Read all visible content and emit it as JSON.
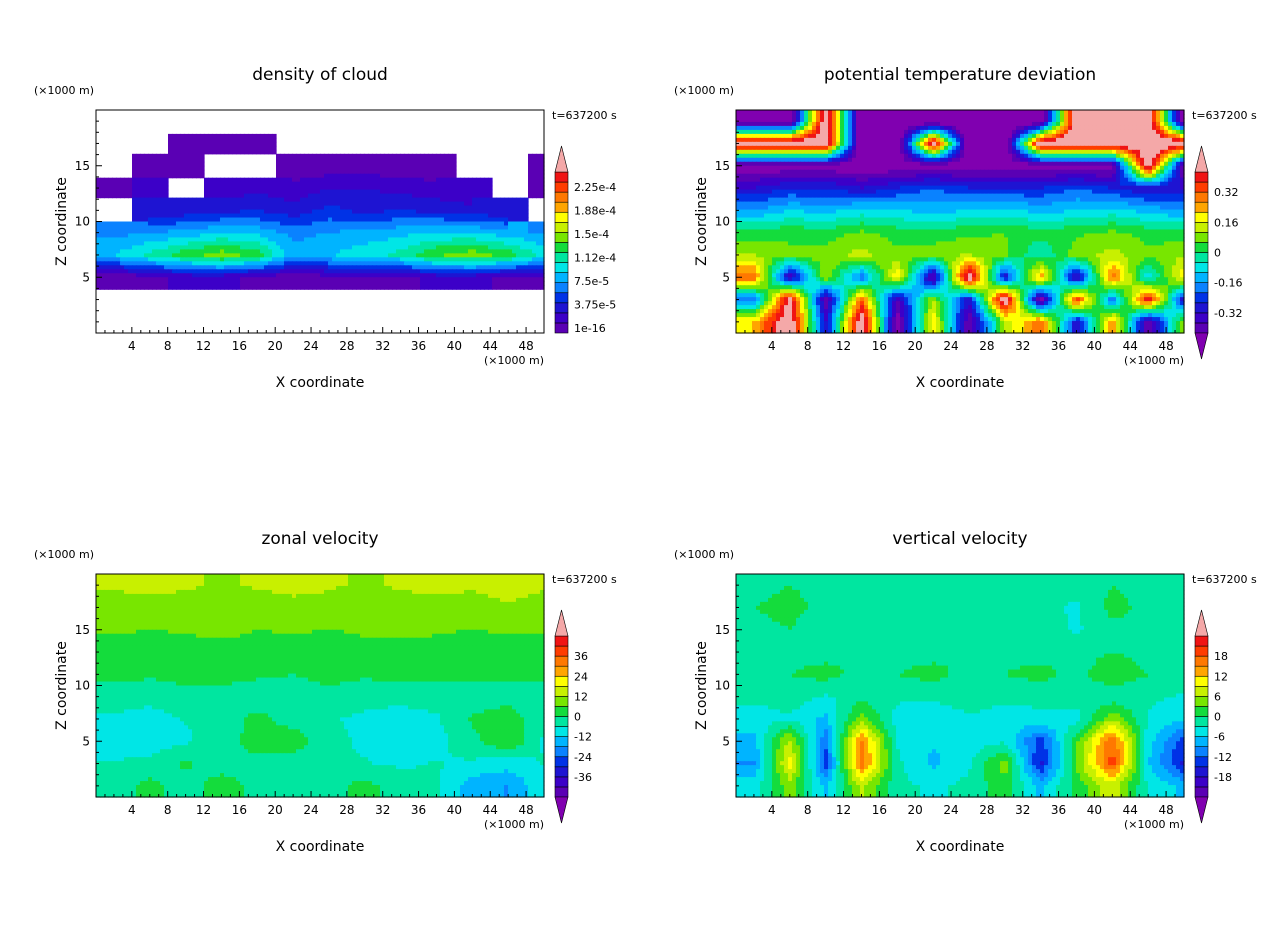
{
  "chart_data": [
    {
      "type": "heatmap",
      "title": "density of cloud",
      "xlabel": "X coordinate",
      "ylabel": "Z coordinate",
      "xunit": "(×1000 m)",
      "yunit": "(×1000 m)",
      "time": "t=637200 s",
      "xlim": [
        0,
        50
      ],
      "ylim": [
        0,
        20
      ],
      "xticks": [
        4,
        8,
        12,
        16,
        20,
        24,
        28,
        32,
        36,
        40,
        44,
        48
      ],
      "yticks": [
        5,
        10,
        15
      ],
      "colorbar": {
        "labels": [
          "1e-16",
          "3.75e-5",
          "7.5e-5",
          "1.12e-4",
          "1.5e-4",
          "1.88e-4",
          "2.25e-4"
        ],
        "min": 0,
        "max": 0.00024,
        "under": false,
        "over": true
      },
      "grid_x": [
        2,
        6,
        10,
        14,
        18,
        22,
        26,
        30,
        34,
        38,
        42,
        46,
        50
      ],
      "grid_z": [
        19,
        17,
        15,
        13,
        11,
        9,
        7,
        5,
        3,
        1
      ],
      "values": [
        [
          null,
          null,
          null,
          null,
          null,
          null,
          null,
          null,
          null,
          null,
          null,
          null,
          null
        ],
        [
          null,
          null,
          1e-06,
          2e-06,
          1e-06,
          null,
          null,
          null,
          null,
          null,
          null,
          null,
          null
        ],
        [
          null,
          2e-06,
          4e-06,
          null,
          null,
          3e-06,
          4e-06,
          5e-06,
          4e-06,
          3e-06,
          null,
          null,
          2e-06
        ],
        [
          1e-05,
          1.5e-05,
          null,
          2e-05,
          2.5e-05,
          2e-05,
          3e-05,
          3e-05,
          2.5e-05,
          2e-05,
          1.5e-05,
          null,
          1e-05
        ],
        [
          null,
          3e-05,
          3.5e-05,
          4e-05,
          4.5e-05,
          3.5e-05,
          5e-05,
          4e-05,
          4.5e-05,
          4e-05,
          3.5e-05,
          3e-05,
          null
        ],
        [
          7e-05,
          7.5e-05,
          8e-05,
          9e-05,
          8.5e-05,
          7e-05,
          7.5e-05,
          8e-05,
          8.5e-05,
          9e-05,
          9e-05,
          8e-05,
          7.5e-05
        ],
        [
          9e-05,
          0.00011,
          0.00013,
          0.000145,
          0.00013,
          8e-05,
          9e-05,
          0.0001,
          0.00011,
          0.000135,
          0.000145,
          0.00013,
          0.0001
        ],
        [
          1e-06,
          1e-05,
          2e-05,
          2e-05,
          1e-05,
          2e-06,
          1e-05,
          1e-05,
          1e-05,
          2e-05,
          2e-05,
          1e-05,
          1e-05
        ],
        [
          null,
          null,
          null,
          null,
          null,
          null,
          null,
          null,
          null,
          null,
          null,
          null,
          null
        ],
        [
          null,
          null,
          null,
          null,
          null,
          null,
          null,
          null,
          null,
          null,
          null,
          null,
          null
        ]
      ]
    },
    {
      "type": "heatmap",
      "title": "potential temperature deviation",
      "xlabel": "X coordinate",
      "ylabel": "Z coordinate",
      "xunit": "(×1000 m)",
      "yunit": "(×1000 m)",
      "time": "t=637200 s",
      "xlim": [
        0,
        50
      ],
      "ylim": [
        0,
        20
      ],
      "xticks": [
        4,
        8,
        12,
        16,
        20,
        24,
        28,
        32,
        36,
        40,
        44,
        48
      ],
      "yticks": [
        5,
        10,
        15
      ],
      "colorbar": {
        "labels": [
          "-0.32",
          "-0.16",
          "0",
          "0.16",
          "0.32"
        ],
        "min": -0.4,
        "max": 0.4,
        "under": true,
        "over": true
      },
      "grid_x": [
        2,
        6,
        10,
        14,
        18,
        22,
        26,
        30,
        34,
        38,
        42,
        46,
        50
      ],
      "grid_z": [
        19,
        17,
        15,
        13,
        11,
        9,
        7,
        5,
        3,
        1
      ],
      "values": [
        [
          -0.5,
          -0.5,
          0.5,
          -0.5,
          -0.5,
          -0.5,
          -0.5,
          -0.5,
          -0.5,
          0.5,
          0.5,
          0.5,
          -0.5
        ],
        [
          0.5,
          0.5,
          0.5,
          -0.5,
          -0.5,
          0.5,
          -0.5,
          -0.5,
          0.5,
          0.5,
          0.5,
          0.5,
          0.5
        ],
        [
          -0.45,
          -0.45,
          -0.45,
          -0.45,
          -0.45,
          -0.45,
          -0.45,
          -0.45,
          -0.45,
          -0.45,
          -0.45,
          0.5,
          -0.45
        ],
        [
          -0.3,
          -0.25,
          -0.25,
          -0.3,
          -0.25,
          -0.2,
          -0.25,
          -0.25,
          -0.25,
          -0.2,
          -0.25,
          -0.3,
          -0.3
        ],
        [
          -0.15,
          -0.1,
          -0.12,
          -0.08,
          -0.1,
          -0.12,
          -0.1,
          -0.08,
          -0.12,
          -0.1,
          -0.08,
          -0.12,
          -0.15
        ],
        [
          0.02,
          0.04,
          0.02,
          0.06,
          0.03,
          0.02,
          0.04,
          0.05,
          0.02,
          0.04,
          0.06,
          0.03,
          0.02
        ],
        [
          0.1,
          0.06,
          0.08,
          0.12,
          0.06,
          0.08,
          0.1,
          0.06,
          -0.05,
          0.08,
          0.12,
          0.06,
          0.1
        ],
        [
          0.3,
          -0.35,
          0.1,
          -0.2,
          0.2,
          -0.4,
          0.5,
          -0.3,
          0.25,
          -0.35,
          0.3,
          -0.1,
          0.2
        ],
        [
          -0.2,
          0.45,
          -0.4,
          0.3,
          -0.35,
          0.1,
          -0.3,
          0.5,
          -0.45,
          0.35,
          -0.2,
          0.4,
          -0.3
        ],
        [
          0.2,
          0.5,
          -0.3,
          0.5,
          -0.45,
          0.2,
          -0.4,
          0.1,
          0.3,
          -0.3,
          0.25,
          -0.4,
          0.1
        ]
      ]
    },
    {
      "type": "heatmap",
      "title": "zonal velocity",
      "xlabel": "X coordinate",
      "ylabel": "Z coordinate",
      "xunit": "(×1000 m)",
      "yunit": "(×1000 m)",
      "time": "t=637200 s",
      "xlim": [
        0,
        50
      ],
      "ylim": [
        0,
        20
      ],
      "xticks": [
        4,
        8,
        12,
        16,
        20,
        24,
        28,
        32,
        36,
        40,
        44,
        48
      ],
      "yticks": [
        5,
        10,
        15
      ],
      "colorbar": {
        "labels": [
          "-36",
          "-24",
          "-12",
          "0",
          "12",
          "24",
          "36"
        ],
        "min": -42,
        "max": 42,
        "under": true,
        "over": true
      },
      "grid_x": [
        2,
        6,
        10,
        14,
        18,
        22,
        26,
        30,
        34,
        38,
        42,
        46,
        50
      ],
      "grid_z": [
        19,
        17,
        15,
        13,
        11,
        9,
        7,
        5,
        3,
        1
      ],
      "values": [
        [
          11,
          12,
          11,
          10,
          11,
          12,
          11,
          10,
          11,
          12,
          11,
          12,
          11
        ],
        [
          9,
          8,
          9,
          10,
          8,
          9,
          9,
          8,
          9,
          8,
          9,
          10,
          9
        ],
        [
          6,
          5,
          6,
          7,
          5,
          6,
          5,
          6,
          7,
          6,
          5,
          6,
          6
        ],
        [
          3,
          4,
          2,
          3,
          4,
          3,
          2,
          4,
          3,
          3,
          4,
          3,
          3
        ],
        [
          2,
          1,
          2,
          3,
          1,
          0,
          2,
          1,
          2,
          1,
          2,
          1,
          2
        ],
        [
          -3,
          -4,
          -2,
          -3,
          -4,
          -3,
          -2,
          -4,
          -3,
          -3,
          -4,
          -3,
          -3
        ],
        [
          -6,
          -7,
          -5,
          -4,
          2,
          -3,
          -5,
          -6,
          -8,
          -6,
          1,
          4,
          -5
        ],
        [
          -7,
          -8,
          -6,
          -3,
          3,
          4,
          -4,
          -6,
          -9,
          -7,
          -2,
          5,
          -6
        ],
        [
          -5,
          -4,
          1,
          -3,
          -2,
          -4,
          -5,
          -5,
          -6,
          -5,
          -6,
          -8,
          -5
        ],
        [
          -4,
          2,
          -3,
          3,
          -2,
          -4,
          -2,
          2,
          -3,
          -4,
          -14,
          -16,
          -6
        ]
      ]
    },
    {
      "type": "heatmap",
      "title": "vertical velocity",
      "xlabel": "X coordinate",
      "ylabel": "Z coordinate",
      "xunit": "(×1000 m)",
      "yunit": "(×1000 m)",
      "time": "t=637200 s",
      "xlim": [
        0,
        50
      ],
      "ylim": [
        0,
        20
      ],
      "xticks": [
        4,
        8,
        12,
        16,
        20,
        24,
        28,
        32,
        36,
        40,
        44,
        48
      ],
      "yticks": [
        5,
        10,
        15
      ],
      "colorbar": {
        "labels": [
          "-18",
          "-12",
          "-6",
          "0",
          "6",
          "12",
          "18"
        ],
        "min": -21,
        "max": 21,
        "under": true,
        "over": true
      },
      "grid_x": [
        2,
        6,
        10,
        14,
        18,
        22,
        26,
        30,
        34,
        38,
        42,
        46,
        50
      ],
      "grid_z": [
        19,
        17,
        15,
        13,
        11,
        9,
        7,
        5,
        3,
        1
      ],
      "values": [
        [
          -1,
          0,
          -1,
          -2,
          0,
          -1,
          -2,
          -1,
          -1,
          -2,
          0,
          -1,
          -1
        ],
        [
          0,
          1,
          -1,
          -1,
          -2,
          0,
          -1,
          -1,
          -2,
          -3,
          1,
          -1,
          0
        ],
        [
          -1,
          0,
          -2,
          -1,
          -1,
          -2,
          -1,
          -2,
          -1,
          -3,
          -1,
          0,
          -1
        ],
        [
          0,
          -1,
          -1,
          0,
          -1,
          -1,
          0,
          -1,
          -1,
          -1,
          0,
          -1,
          -1
        ],
        [
          -1,
          0,
          1,
          -1,
          0,
          1,
          -1,
          0,
          1,
          -1,
          2,
          0,
          -1
        ],
        [
          -2,
          -1,
          -3,
          -1,
          -2,
          -2,
          -1,
          -2,
          -2,
          -1,
          -2,
          -2,
          -3
        ],
        [
          -4,
          -3,
          -6,
          4,
          -4,
          -5,
          -3,
          -4,
          -3,
          -4,
          5,
          -3,
          -5
        ],
        [
          -6,
          6,
          -10,
          14,
          -3,
          -5,
          -4,
          -3,
          -12,
          2,
          16,
          -4,
          -12
        ],
        [
          -8,
          9,
          -12,
          15,
          -2,
          -6,
          -3,
          4,
          -14,
          3,
          17,
          -5,
          -14
        ],
        [
          -4,
          4,
          -6,
          6,
          -2,
          -3,
          -2,
          2,
          -6,
          1,
          7,
          -3,
          -6
        ]
      ]
    }
  ]
}
